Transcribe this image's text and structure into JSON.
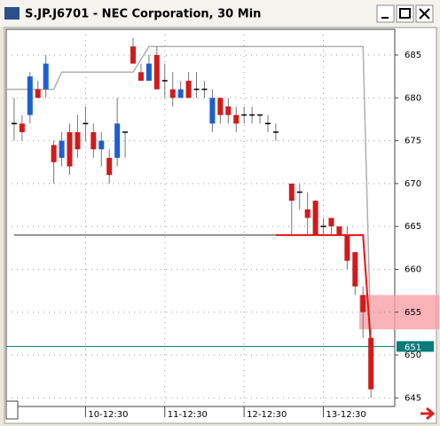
{
  "window": {
    "title": "S.JP.J6701 - NEC Corporation, 30 Min"
  },
  "chart_data": {
    "type": "candlestick",
    "x": [
      1,
      2,
      3,
      4,
      5,
      6,
      7,
      8,
      9,
      10,
      11,
      12,
      13,
      14,
      15,
      16,
      17,
      18,
      19,
      20,
      21,
      22,
      23,
      24,
      25,
      26,
      27,
      28,
      29,
      30,
      31,
      32,
      33,
      34,
      36,
      37,
      38,
      39,
      40,
      41,
      42,
      43,
      44,
      45,
      46
    ],
    "open": [
      677,
      677,
      678,
      681,
      681,
      674.5,
      673,
      676,
      676,
      677,
      676,
      674,
      673,
      673,
      676,
      686,
      683,
      682,
      685,
      682,
      681,
      680,
      682,
      681,
      681,
      677,
      680,
      679,
      678,
      678,
      678,
      678,
      677,
      676,
      670,
      669,
      667,
      668,
      665,
      666,
      665,
      664,
      662,
      657,
      652
    ],
    "high": [
      680,
      678,
      683,
      682,
      685,
      675,
      676,
      677,
      678,
      679,
      677,
      676,
      674,
      680,
      676,
      687,
      684,
      685,
      686,
      684,
      683,
      682,
      683,
      683,
      682,
      681,
      680,
      680,
      679,
      679,
      679,
      678,
      678,
      677,
      670,
      670,
      669,
      668,
      666,
      666,
      665,
      665,
      662,
      658,
      653
    ],
    "low": [
      675,
      675,
      677,
      680,
      680,
      670,
      672,
      671,
      673,
      675,
      673,
      672,
      670,
      672,
      673,
      684,
      682,
      682,
      681,
      680,
      679,
      680,
      680,
      680,
      680,
      676,
      677,
      677,
      676,
      677,
      677,
      677,
      676,
      675,
      664,
      667,
      664,
      664,
      664,
      664,
      664,
      660,
      657,
      652,
      645
    ],
    "close": [
      677,
      676,
      682.5,
      680,
      684,
      672.5,
      675,
      672,
      674,
      677,
      674,
      675,
      671,
      677,
      676,
      684,
      682,
      684,
      681,
      682,
      680,
      681,
      680,
      681,
      681,
      680,
      678,
      678,
      677,
      678,
      678,
      678,
      677,
      676,
      668,
      669,
      666,
      664,
      665,
      665,
      664,
      661,
      658,
      655,
      646
    ],
    "up_color": "#1e5fd0",
    "down_color": "#d21a1a",
    "lines": [
      {
        "color": "#b0b0b0",
        "x": [
          0,
          6,
          7,
          16,
          18,
          45,
          46
        ],
        "values": [
          681,
          681,
          683,
          683,
          686,
          686,
          651
        ]
      },
      {
        "color": "#707070",
        "x": [
          1,
          34
        ],
        "values": [
          664,
          664
        ]
      },
      {
        "color": "#e81010",
        "x": [
          34,
          45,
          46
        ],
        "values": [
          664,
          664,
          651
        ]
      }
    ],
    "last_price": 651,
    "last_color": "#0a7a7a",
    "zone": {
      "from": 653,
      "to": 657,
      "color": "#f7a0a8"
    },
    "xlim": [
      0,
      49
    ],
    "ylim": [
      644,
      688
    ],
    "xticks": [
      {
        "value": 10,
        "label": "10-12:30"
      },
      {
        "value": 20,
        "label": "11-12:30"
      },
      {
        "value": 30,
        "label": "12-12:30"
      },
      {
        "value": 40,
        "label": "13-12:30"
      }
    ],
    "yticks": [
      645,
      650,
      655,
      660,
      665,
      670,
      675,
      680,
      685
    ],
    "grid": true
  }
}
